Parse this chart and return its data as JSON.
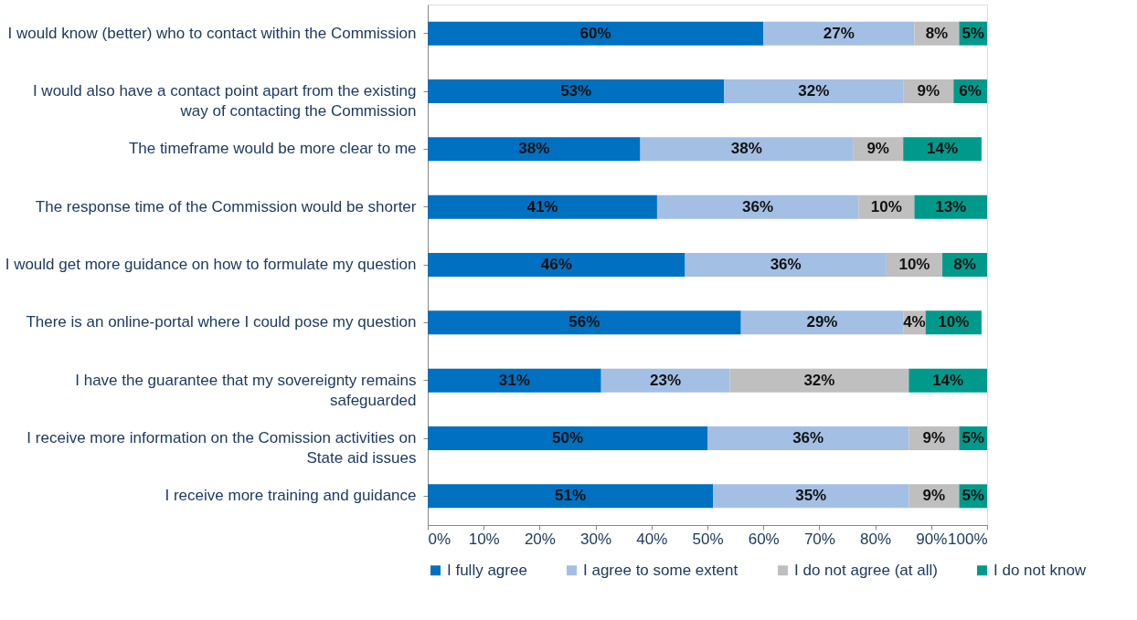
{
  "chart_data": {
    "type": "bar",
    "orientation": "horizontal",
    "stacked": true,
    "categories": [
      "I would know (better) who to contact within the Commission",
      "I would also have a contact point apart from the existing way of contacting the Commission",
      "The timeframe would be more clear to me",
      "The response time of the Commission would be shorter",
      "I would get more guidance on how to formulate my question",
      "There is an online-portal where I could pose my question",
      "I have the guarantee that my sovereignty remains safeguarded",
      "I receive more information on the Comission activities on State aid issues",
      "I receive more training and guidance"
    ],
    "series": [
      {
        "name": "I fully agree",
        "color": "#0070c0",
        "values": [
          60,
          53,
          38,
          41,
          46,
          56,
          31,
          50,
          51
        ],
        "value_labels": [
          "60%",
          "53%",
          "38%",
          "41%",
          "46%",
          "56%",
          "31%",
          "50%",
          "51%"
        ]
      },
      {
        "name": "I agree to some extent",
        "color": "#a4bfe4",
        "values": [
          27,
          32,
          38,
          36,
          36,
          29,
          23,
          36,
          35
        ],
        "value_labels": [
          "27%",
          "32%",
          "38%",
          "36%",
          "36%",
          "29%",
          "23%",
          "36%",
          "35%"
        ]
      },
      {
        "name": "I do not agree (at all)",
        "color": "#bfbfbf",
        "values": [
          8,
          9,
          9,
          10,
          10,
          4,
          32,
          9,
          9
        ],
        "value_labels": [
          "8%",
          "9%",
          "9%",
          "10%",
          "10%",
          "4%",
          "32%",
          "9%",
          "9%"
        ]
      },
      {
        "name": "I do not know",
        "color": "#009a8c",
        "values": [
          5,
          6,
          14,
          13,
          8,
          10,
          14,
          5,
          5
        ],
        "value_labels": [
          "5%",
          "6%",
          "14%",
          "13%",
          "8%",
          "10%",
          "14%",
          "5%",
          "5%"
        ]
      }
    ],
    "xlim": [
      0,
      100
    ],
    "xticks": [
      {
        "value": 0,
        "label": "0%"
      },
      {
        "value": 10,
        "label": "10%"
      },
      {
        "value": 20,
        "label": "20%"
      },
      {
        "value": 30,
        "label": "30%"
      },
      {
        "value": 40,
        "label": "40%"
      },
      {
        "value": 50,
        "label": "50%"
      },
      {
        "value": 60,
        "label": "60%"
      },
      {
        "value": 70,
        "label": "70%"
      },
      {
        "value": 80,
        "label": "80%"
      },
      {
        "value": 90,
        "label": "90%"
      },
      {
        "value": 100,
        "label": "100%"
      }
    ],
    "grid": false,
    "legend": "bottom"
  }
}
